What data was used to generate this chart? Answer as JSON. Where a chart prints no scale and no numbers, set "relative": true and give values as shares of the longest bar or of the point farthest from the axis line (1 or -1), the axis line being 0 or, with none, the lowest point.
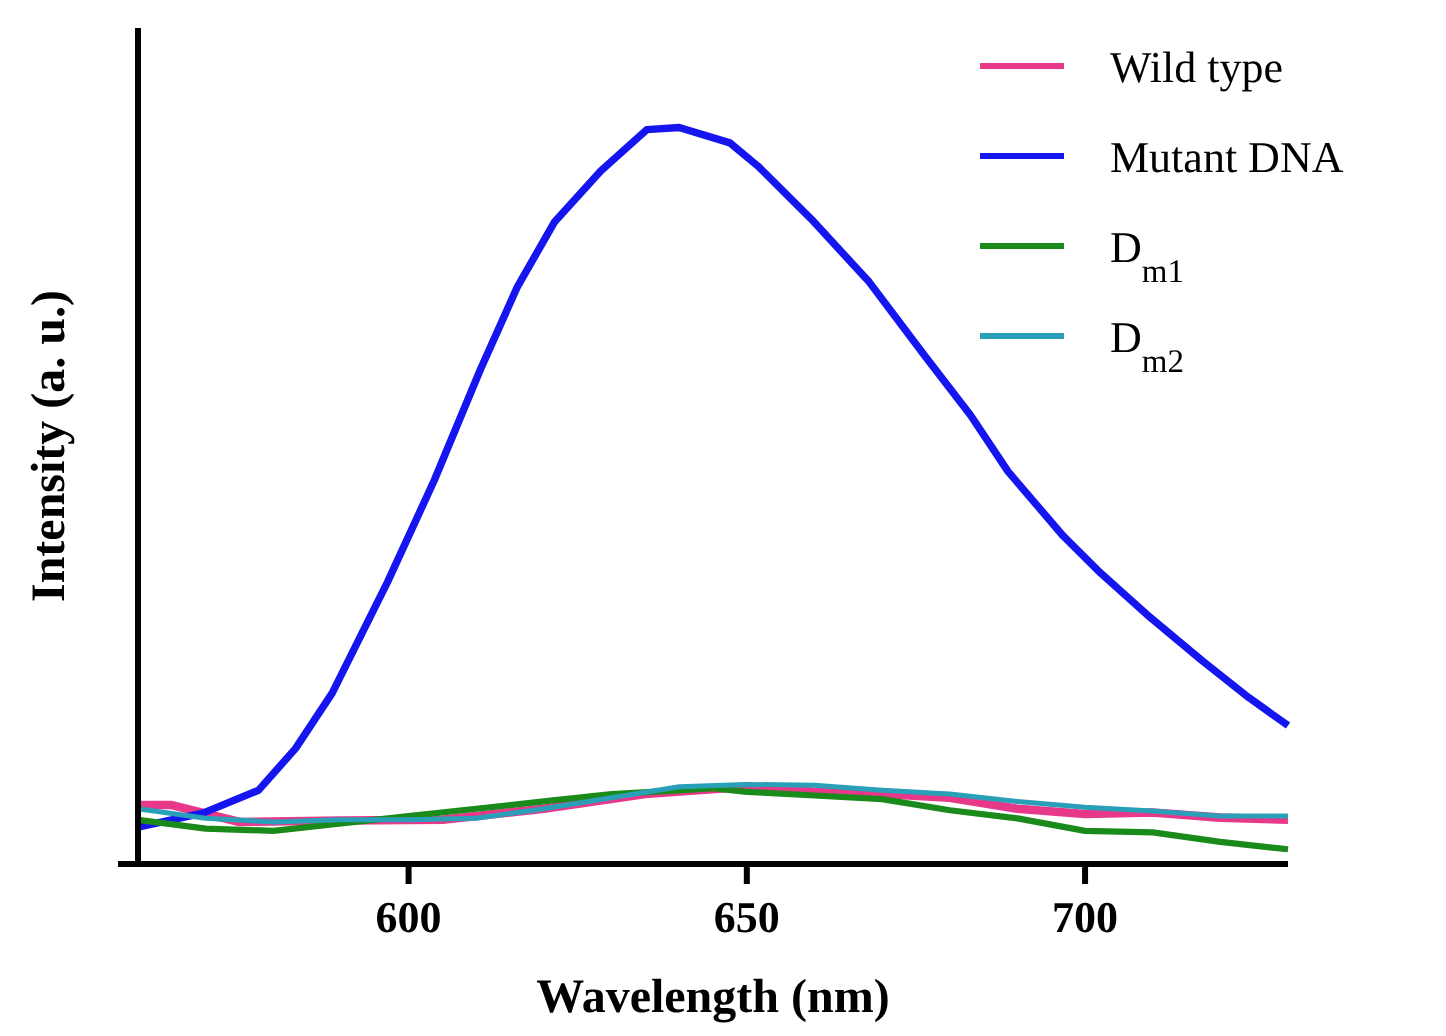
{
  "chart_data": {
    "type": "line",
    "relative": true,
    "xlabel": "Wavelength (nm)",
    "ylabel": "Intensity (a. u.)",
    "xlim": [
      560,
      730
    ],
    "xticks": [
      600,
      650,
      700
    ],
    "legend": "top right",
    "grid": false,
    "line_style": "solid",
    "series": [
      {
        "name": "Wild type",
        "color": "#e8388a",
        "x": [
          560,
          565,
          575,
          590,
          605,
          620,
          635,
          650,
          660,
          670,
          680,
          690,
          700,
          710,
          720,
          730
        ],
        "values": [
          0.08,
          0.08,
          0.057,
          0.059,
          0.06,
          0.075,
          0.095,
          0.105,
          0.098,
          0.095,
          0.09,
          0.075,
          0.068,
          0.07,
          0.063,
          0.06
        ]
      },
      {
        "name": "Mutant DNA",
        "color": "#1515f0",
        "x": [
          560,
          569.6,
          577.8,
          583.3,
          588.7,
          596.9,
          603.8,
          610.6,
          616.1,
          621.6,
          628.4,
          635.2,
          640,
          647.5,
          651.7,
          659.9,
          668.1,
          676.3,
          683.1,
          688.6,
          696.8,
          702.3,
          709.1,
          717.3,
          724.2,
          730
        ],
        "values": [
          0.05,
          0.069,
          0.1,
          0.157,
          0.232,
          0.383,
          0.521,
          0.671,
          0.784,
          0.872,
          0.941,
          0.997,
          1,
          0.979,
          0.947,
          0.872,
          0.79,
          0.69,
          0.609,
          0.533,
          0.445,
          0.395,
          0.339,
          0.276,
          0.226,
          0.188
        ]
      },
      {
        "name": "D$_{m1}$",
        "color": "#1a8a1a",
        "x": [
          560,
          570,
          580,
          590,
          600,
          610,
          620,
          630,
          640,
          645,
          650,
          660,
          670,
          680,
          690,
          700,
          710,
          720,
          730
        ],
        "values": [
          0.06,
          0.048,
          0.045,
          0.055,
          0.065,
          0.075,
          0.085,
          0.095,
          0.1,
          0.103,
          0.098,
          0.093,
          0.088,
          0.073,
          0.062,
          0.045,
          0.043,
          0.03,
          0.02
        ]
      },
      {
        "name": "D$_{m2}$",
        "color": "#2aa0b8",
        "x": [
          560,
          570,
          580,
          590,
          600,
          610,
          620,
          630,
          640,
          650,
          660,
          670,
          680,
          690,
          700,
          710,
          720,
          730
        ],
        "values": [
          0.075,
          0.062,
          0.057,
          0.06,
          0.06,
          0.062,
          0.075,
          0.09,
          0.105,
          0.108,
          0.107,
          0.1,
          0.095,
          0.085,
          0.077,
          0.072,
          0.065,
          0.065
        ]
      }
    ]
  }
}
